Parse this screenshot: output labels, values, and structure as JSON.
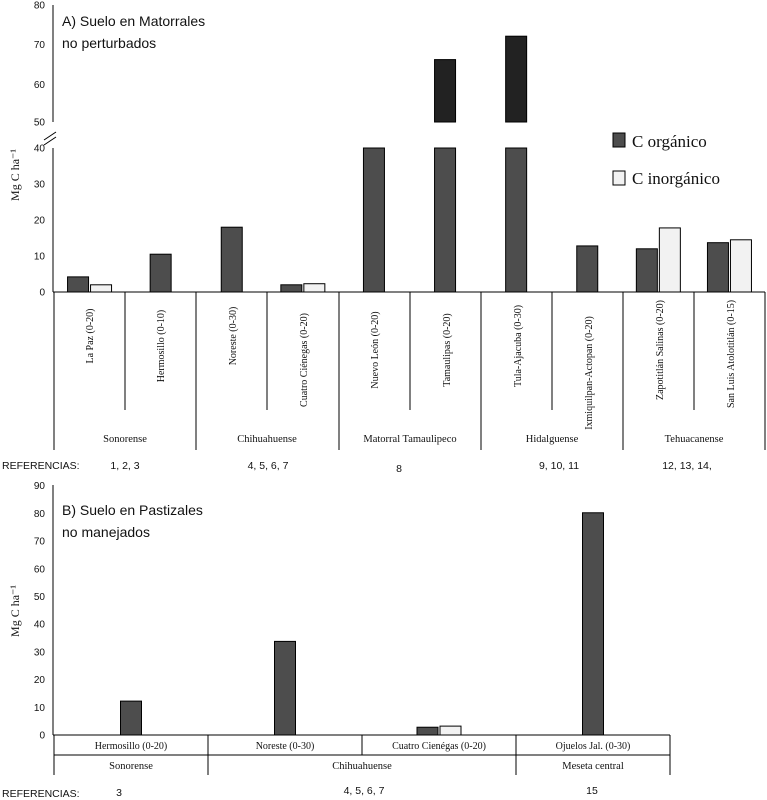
{
  "colors": {
    "organic": "#4d4d4d",
    "organic_upper": "#222222",
    "inorganic": "#f2f2f2"
  },
  "legend": {
    "organic": "C orgánico",
    "inorganic": "C inorgánico"
  },
  "refs_label": "REFERENCIAS:",
  "panels": [
    {
      "title_l1": "A) Suelo en Matorrales",
      "title_l2": "no perturbados",
      "ylabel": "Mg C ha⁻¹",
      "lower_axis": {
        "min": 0,
        "max": 40,
        "ticks": [
          "0",
          "10",
          "20",
          "30",
          "40"
        ]
      },
      "upper_axis": {
        "min": 50,
        "max": 80,
        "ticks": [
          "50",
          "60",
          "70",
          "80"
        ]
      },
      "groups": [
        "Sonorense",
        "Chihuahuense",
        "Matorral Tamaulipeco",
        "Hidalguense",
        "Tehuacanense"
      ],
      "refs": [
        "1, 2, 3",
        "4, 5, 6, 7",
        "8",
        "9, 10, 11",
        "12, 13, 14,"
      ]
    },
    {
      "title_l1": "B) Suelo en Pastizales",
      "title_l2": "no manejados",
      "ylabel": "Mg C ha⁻¹",
      "axis": {
        "min": 0,
        "max": 90,
        "ticks": [
          "0",
          "10",
          "20",
          "30",
          "40",
          "50",
          "60",
          "70",
          "80",
          "90"
        ]
      },
      "groups": [
        "Sonorense",
        "Chihuahuense",
        "Meseta central"
      ],
      "refs": [
        "3",
        "4, 5, 6, 7",
        "15"
      ]
    }
  ],
  "chart_data": [
    {
      "type": "bar",
      "title": "A) Suelo en Matorrales no perturbados",
      "ylabel": "Mg C ha-1",
      "y_break": [
        40,
        50
      ],
      "ylim": [
        0,
        80
      ],
      "categories": [
        "La Paz (0-20)",
        "Hermosillo (0-10)",
        "Noreste (0-30)",
        "Cuatro Ciénegas (0-20)",
        "Nuevo León (0-20)",
        "Tamaulipas (0-20)",
        "Tula-Ajacuba (0-30)",
        "Ixmiquilpan-Actopan (0-20)",
        "Zapotitlán Salinas (0-20)",
        "San Luis Atolotitlán (0-15)"
      ],
      "series": [
        {
          "name": "C orgánico",
          "values": [
            4.2,
            10.5,
            18,
            2,
            40,
            66,
            72,
            12.8,
            12,
            13.7
          ]
        },
        {
          "name": "C inorgánico",
          "values": [
            2,
            null,
            null,
            2.3,
            null,
            null,
            null,
            null,
            17.8,
            14.5
          ]
        }
      ]
    },
    {
      "type": "bar",
      "title": "B) Suelo en Pastizales no manejados",
      "ylabel": "Mg C ha-1",
      "ylim": [
        0,
        90
      ],
      "categories": [
        "Hermosillo (0-20)",
        "Noreste (0-30)",
        "Cuatro Cienégas (0-20)",
        "Ojuelos Jal. (0-30)"
      ],
      "series": [
        {
          "name": "C orgánico",
          "values": [
            12.2,
            33.7,
            2.8,
            80
          ]
        },
        {
          "name": "C inorgánico",
          "values": [
            null,
            null,
            3.2,
            null
          ]
        }
      ]
    }
  ]
}
